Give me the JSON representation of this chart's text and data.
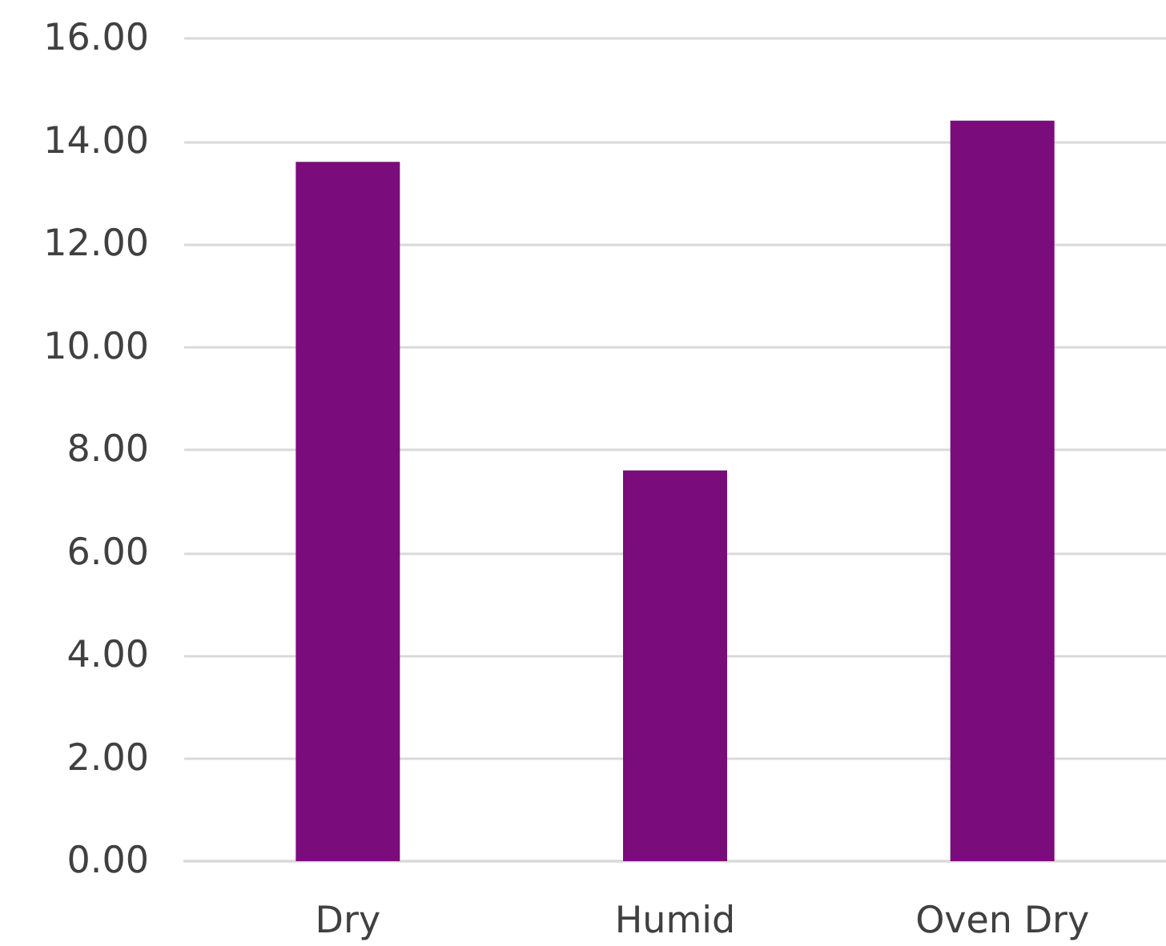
{
  "chart_data": {
    "type": "bar",
    "categories": [
      "Dry",
      "Humid",
      "Oven Dry"
    ],
    "values": [
      13.6,
      7.6,
      14.4
    ],
    "color": "#7b0c7b",
    "ylim": [
      0,
      16
    ],
    "yticks": [
      {
        "value": 0,
        "label": "0.00"
      },
      {
        "value": 2,
        "label": "2.00"
      },
      {
        "value": 4,
        "label": "4.00"
      },
      {
        "value": 6,
        "label": "6.00"
      },
      {
        "value": 8,
        "label": "8.00"
      },
      {
        "value": 10,
        "label": "10.00"
      },
      {
        "value": 12,
        "label": "12.00"
      },
      {
        "value": 14,
        "label": "14.00"
      },
      {
        "value": 16,
        "label": "16.00"
      }
    ],
    "grid": "y"
  }
}
